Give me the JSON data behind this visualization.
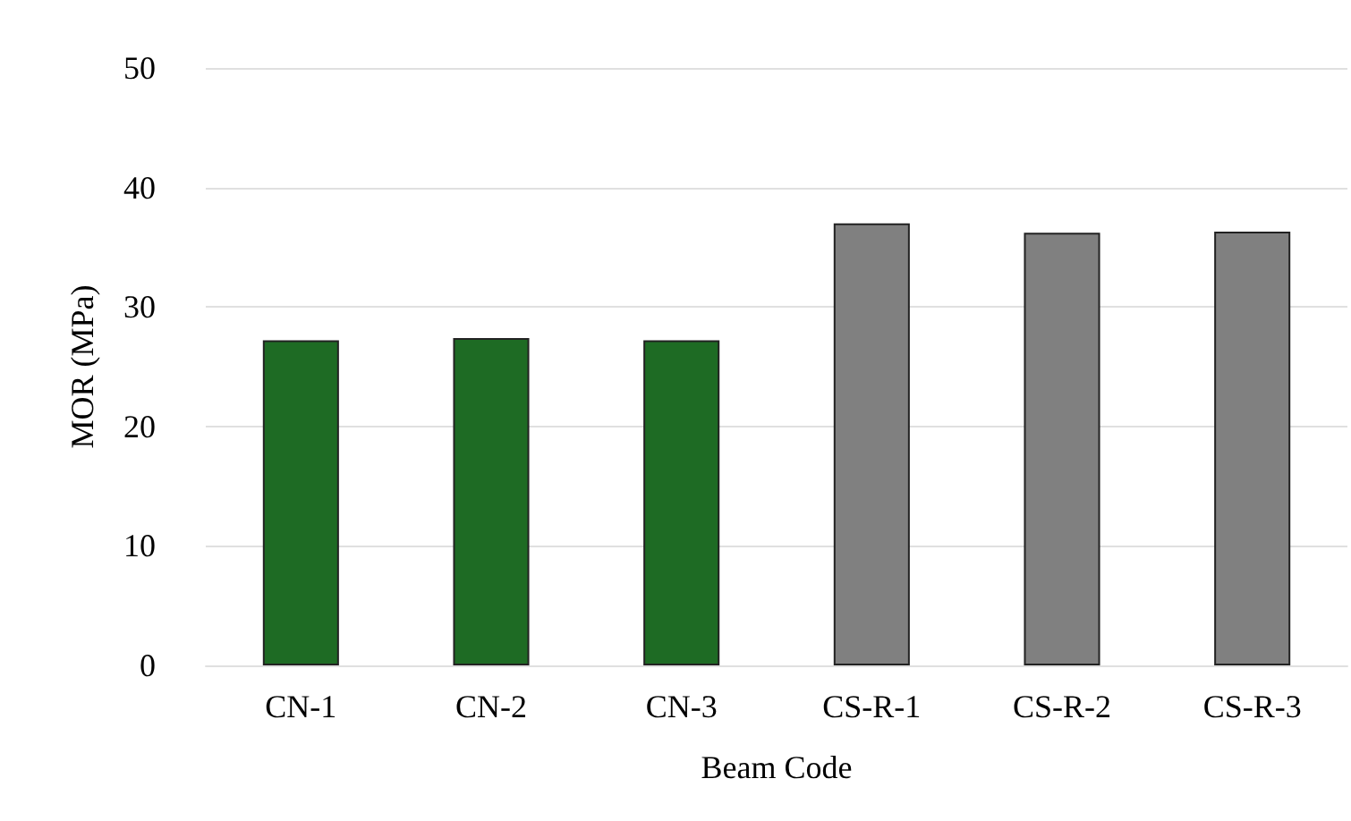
{
  "chart_data": {
    "type": "bar",
    "xlabel": "Beam Code",
    "ylabel": "MOR (MPa)",
    "categories": [
      "CN-1",
      "CN-2",
      "CN-3",
      "CS-R-1",
      "CS-R-2",
      "CS-R-3"
    ],
    "values": [
      27.2,
      27.4,
      27.2,
      37.0,
      36.2,
      36.3
    ],
    "colors": [
      "#1e6b24",
      "#1e6b24",
      "#1e6b24",
      "#808080",
      "#808080",
      "#808080"
    ],
    "ylim": [
      0,
      50
    ],
    "yticks": [
      0,
      10,
      20,
      30,
      40,
      50
    ],
    "grid": "y"
  }
}
